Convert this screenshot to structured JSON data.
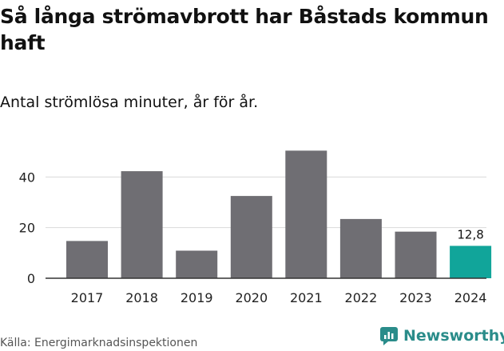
{
  "title": "Så långa strömavbrott har Båstads kommun haft",
  "subtitle": "Antal strömlösa minuter, år för år.",
  "source": "Källa: Energimarknadsinspektionen",
  "brand": {
    "name": "Newsworthy"
  },
  "colors": {
    "bar": "#6f6e73",
    "highlight": "#11a59a",
    "grid": "#d9d9d9",
    "axis": "#333333",
    "brand": "#2a8c8a"
  },
  "chart_data": {
    "type": "bar",
    "categories": [
      "2017",
      "2018",
      "2019",
      "2020",
      "2021",
      "2022",
      "2023",
      "2024"
    ],
    "values": [
      14.7,
      42.3,
      10.9,
      32.5,
      50.4,
      23.4,
      18.4,
      12.8
    ],
    "highlight_index": 7,
    "highlight_label": "12,8",
    "yticks": [
      0,
      20,
      40
    ],
    "ylim": [
      0,
      54
    ],
    "xlabel": "",
    "ylabel": "",
    "grid": true
  }
}
